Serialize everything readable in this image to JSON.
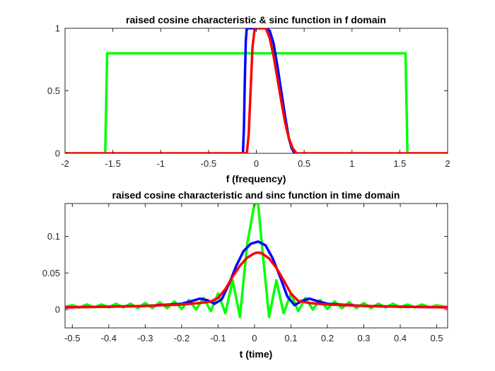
{
  "chart_data": [
    {
      "type": "line",
      "title": "raised cosine characteristic & sinc function in f domain",
      "xlabel": "f (frequency)",
      "ylabel": "",
      "xlim": [
        -2,
        2
      ],
      "ylim": [
        0,
        1
      ],
      "xticks": [
        -2,
        -1.5,
        -1,
        -0.5,
        0,
        0.5,
        1,
        1.5,
        2
      ],
      "xtick_labels": [
        "-2",
        "-1.5",
        "-1",
        "-0.5",
        "0",
        "0.5",
        "1",
        "1.5",
        "2"
      ],
      "yticks": [
        0,
        0.5,
        1
      ],
      "ytick_labels": [
        "0",
        "0.5",
        "1"
      ],
      "grid": false,
      "series": [
        {
          "color": "#00ff00",
          "x": [
            -2,
            -1.58,
            -1.58,
            -1.56,
            -1.56,
            1.56,
            1.56,
            1.58,
            1.58,
            2
          ],
          "y": [
            0,
            0,
            0,
            0.8,
            0.8,
            0.8,
            0.8,
            0,
            0,
            0
          ]
        },
        {
          "color": "#0000ff",
          "x": [
            -0.14,
            -0.13,
            -0.12,
            -0.11,
            -0.1,
            0.1,
            0.14,
            0.18,
            0.22,
            0.26,
            0.3,
            0.34,
            0.37,
            0.4
          ],
          "y": [
            0,
            0.2,
            0.6,
            0.9,
            1,
            1,
            0.98,
            0.88,
            0.7,
            0.5,
            0.3,
            0.12,
            0.04,
            0
          ]
        },
        {
          "color": "#ff0000",
          "x": [
            -2,
            -0.1,
            -0.08,
            -0.06,
            -0.04,
            -0.02,
            0,
            0.1,
            0.14,
            0.18,
            0.22,
            0.26,
            0.3,
            0.34,
            0.38,
            0.42,
            2
          ],
          "y": [
            0,
            0,
            0.15,
            0.5,
            0.85,
            0.98,
            1,
            1,
            0.92,
            0.78,
            0.6,
            0.42,
            0.25,
            0.12,
            0.04,
            0,
            0
          ]
        }
      ]
    },
    {
      "type": "line",
      "title": "raised cosine characteristic and sinc function in time domain",
      "xlabel": "t (time)",
      "ylabel": "",
      "xlim": [
        -0.52,
        0.53
      ],
      "ylim": [
        -0.025,
        0.145
      ],
      "xticks": [
        -0.5,
        -0.4,
        -0.3,
        -0.2,
        -0.1,
        0,
        0.1,
        0.2,
        0.3,
        0.4,
        0.5
      ],
      "xtick_labels": [
        "-0.5",
        "-0.4",
        "-0.3",
        "-0.2",
        "-0.1",
        "0",
        "0.1",
        "0.2",
        "0.3",
        "0.4",
        "0.5"
      ],
      "yticks": [
        0,
        0.05,
        0.1
      ],
      "ytick_labels": [
        "0",
        "0.05",
        "0.1"
      ],
      "grid": false,
      "series": [
        {
          "color": "#00ff00",
          "x": [
            -0.52,
            -0.5,
            -0.48,
            -0.46,
            -0.44,
            -0.42,
            -0.4,
            -0.38,
            -0.36,
            -0.34,
            -0.32,
            -0.3,
            -0.28,
            -0.26,
            -0.24,
            -0.22,
            -0.2,
            -0.18,
            -0.16,
            -0.14,
            -0.12,
            -0.1,
            -0.08,
            -0.06,
            -0.04,
            -0.02,
            0,
            0.01,
            0.02,
            0.04,
            0.06,
            0.08,
            0.1,
            0.12,
            0.14,
            0.16,
            0.18,
            0.2,
            0.22,
            0.24,
            0.26,
            0.28,
            0.3,
            0.32,
            0.34,
            0.36,
            0.38,
            0.4,
            0.42,
            0.44,
            0.46,
            0.48,
            0.5,
            0.52,
            0.53
          ],
          "y": [
            0.004,
            0.006,
            0.003,
            0.007,
            0.003,
            0.007,
            0.003,
            0.008,
            0.003,
            0.008,
            0.002,
            0.009,
            0.002,
            0.01,
            0.002,
            0.011,
            0.001,
            0.013,
            0.0,
            0.016,
            -0.002,
            0.022,
            -0.005,
            0.04,
            -0.01,
            0.09,
            0.145,
            0.145,
            0.09,
            -0.01,
            0.04,
            -0.005,
            0.022,
            -0.002,
            0.016,
            0.0,
            0.013,
            0.001,
            0.011,
            0.002,
            0.01,
            0.002,
            0.009,
            0.002,
            0.008,
            0.003,
            0.008,
            0.003,
            0.007,
            0.003,
            0.007,
            0.003,
            0.006,
            0.004,
            0.004
          ]
        },
        {
          "color": "#0000ff",
          "x": [
            -0.52,
            -0.4,
            -0.3,
            -0.2,
            -0.17,
            -0.15,
            -0.13,
            -0.11,
            -0.09,
            -0.07,
            -0.05,
            -0.03,
            -0.01,
            0.01,
            0.03,
            0.05,
            0.07,
            0.09,
            0.11,
            0.13,
            0.15,
            0.17,
            0.2,
            0.3,
            0.4,
            0.53
          ],
          "y": [
            0.003,
            0.004,
            0.005,
            0.008,
            0.012,
            0.015,
            0.013,
            0.008,
            0.014,
            0.035,
            0.06,
            0.08,
            0.09,
            0.093,
            0.088,
            0.07,
            0.045,
            0.018,
            0.006,
            0.012,
            0.015,
            0.012,
            0.008,
            0.005,
            0.004,
            0.003
          ]
        },
        {
          "color": "#ff0000",
          "x": [
            -0.52,
            -0.4,
            -0.3,
            -0.2,
            -0.15,
            -0.12,
            -0.1,
            -0.08,
            -0.06,
            -0.04,
            -0.02,
            0,
            0.01,
            0.02,
            0.04,
            0.06,
            0.08,
            0.1,
            0.12,
            0.15,
            0.2,
            0.3,
            0.4,
            0.53
          ],
          "y": [
            0.003,
            0.004,
            0.005,
            0.007,
            0.009,
            0.011,
            0.016,
            0.028,
            0.045,
            0.06,
            0.071,
            0.077,
            0.078,
            0.077,
            0.07,
            0.057,
            0.04,
            0.022,
            0.012,
            0.009,
            0.007,
            0.005,
            0.004,
            0.003
          ]
        }
      ]
    }
  ]
}
